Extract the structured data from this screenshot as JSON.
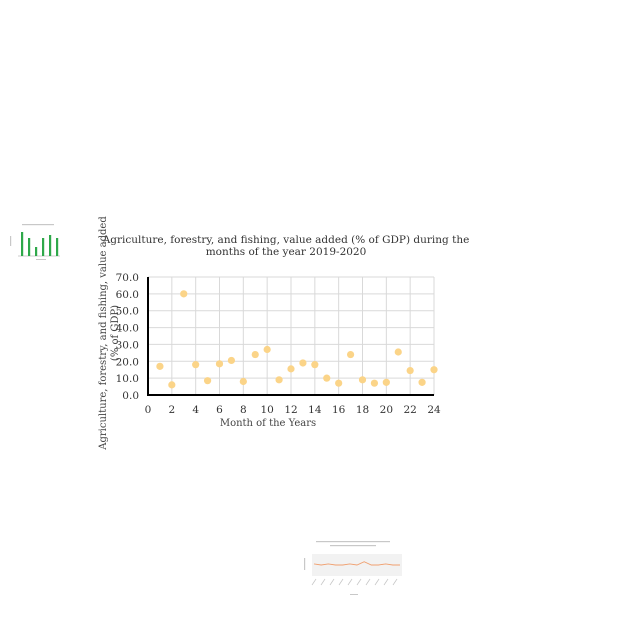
{
  "chart_data": [
    {
      "type": "scatter",
      "title_lines": [
        "Agriculture, forestry, and fishing, value added (% of GDP) during the",
        "months of the year 2019-2020"
      ],
      "xlabel": "Month of the Years",
      "ylabel_lines": [
        "Agriculture, forestry, and fishing, value added",
        "(% of GDP)"
      ],
      "xlim": [
        0,
        24
      ],
      "ylim": [
        0,
        70
      ],
      "xticks": [
        0,
        2,
        4,
        6,
        8,
        10,
        12,
        14,
        16,
        18,
        20,
        22,
        24
      ],
      "yticks": [
        "0.0",
        "10.0",
        "20.0",
        "30.0",
        "40.0",
        "50.0",
        "60.0",
        "70.0"
      ],
      "grid": true,
      "legend": "none",
      "color": "#fbd488",
      "x": [
        1,
        2,
        3,
        4,
        5,
        6,
        7,
        8,
        9,
        10,
        11,
        12,
        13,
        14,
        15,
        16,
        17,
        18,
        19,
        20,
        21,
        22,
        23,
        24
      ],
      "y": [
        17.0,
        6.0,
        60.0,
        18.0,
        8.5,
        18.5,
        20.5,
        8.0,
        24.0,
        27.0,
        9.0,
        15.5,
        19.0,
        18.0,
        10.0,
        7.0,
        24.0,
        9.0,
        7.0,
        7.5,
        25.5,
        14.5,
        7.5,
        15.0
      ]
    },
    {
      "type": "bar",
      "color": "#2ea84a",
      "values": [
        8,
        6,
        3,
        6,
        7,
        6
      ]
    },
    {
      "type": "line",
      "color": "#f0a070",
      "values": [
        21,
        20,
        21,
        20,
        20,
        21,
        20,
        23,
        20,
        20,
        21,
        20,
        20
      ]
    }
  ]
}
